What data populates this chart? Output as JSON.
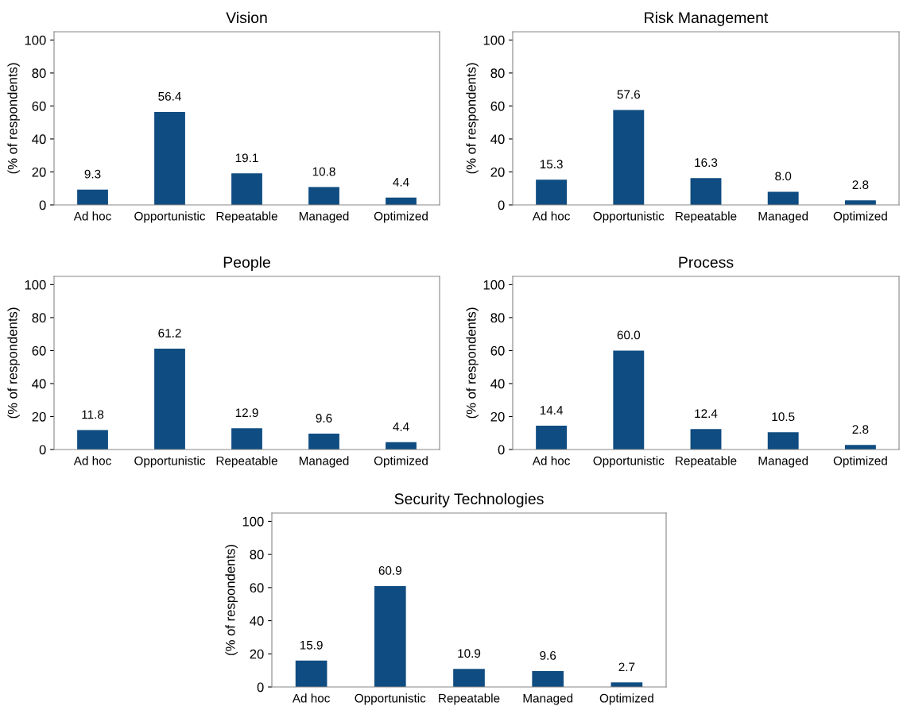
{
  "chart_data": [
    {
      "type": "bar",
      "title": "Vision",
      "ylabel": "(% of respondents)",
      "categories": [
        "Ad hoc",
        "Opportunistic",
        "Repeatable",
        "Managed",
        "Optimized"
      ],
      "values": [
        9.3,
        56.4,
        19.1,
        10.8,
        4.4
      ],
      "value_labels": [
        "9.3",
        "56.4",
        "19.1",
        "10.8",
        "4.4"
      ],
      "color": "#0f4c81",
      "ylim": [
        0,
        105
      ],
      "yticks": [
        0,
        20,
        40,
        60,
        80,
        100
      ]
    },
    {
      "type": "bar",
      "title": "Risk Management",
      "ylabel": "(% of respondents)",
      "categories": [
        "Ad hoc",
        "Opportunistic",
        "Repeatable",
        "Managed",
        "Optimized"
      ],
      "values": [
        15.3,
        57.6,
        16.3,
        8,
        2.8
      ],
      "value_labels": [
        "15.3",
        "57.6",
        "16.3",
        "8.0",
        "2.8"
      ],
      "color": "#0f4c81",
      "ylim": [
        0,
        105
      ],
      "yticks": [
        0,
        20,
        40,
        60,
        80,
        100
      ]
    },
    {
      "type": "bar",
      "title": "People",
      "ylabel": "(% of respondents)",
      "categories": [
        "Ad hoc",
        "Opportunistic",
        "Repeatable",
        "Managed",
        "Optimized"
      ],
      "values": [
        11.8,
        61.2,
        12.9,
        9.6,
        4.4
      ],
      "value_labels": [
        "11.8",
        "61.2",
        "12.9",
        "9.6",
        "4.4"
      ],
      "color": "#0f4c81",
      "ylim": [
        0,
        105
      ],
      "yticks": [
        0,
        20,
        40,
        60,
        80,
        100
      ]
    },
    {
      "type": "bar",
      "title": "Process",
      "ylabel": "(% of respondents)",
      "categories": [
        "Ad hoc",
        "Opportunistic",
        "Repeatable",
        "Managed",
        "Optimized"
      ],
      "values": [
        14.4,
        60,
        12.4,
        10.5,
        2.8
      ],
      "value_labels": [
        "14.4",
        "60.0",
        "12.4",
        "10.5",
        "2.8"
      ],
      "color": "#0f4c81",
      "ylim": [
        0,
        105
      ],
      "yticks": [
        0,
        20,
        40,
        60,
        80,
        100
      ]
    },
    {
      "type": "bar",
      "title": "Security Technologies",
      "ylabel": "(% of respondents)",
      "categories": [
        "Ad hoc",
        "Opportunistic",
        "Repeatable",
        "Managed",
        "Optimized"
      ],
      "values": [
        15.9,
        60.9,
        10.9,
        9.6,
        2.7
      ],
      "value_labels": [
        "15.9",
        "60.9",
        "10.9",
        "9.6",
        "2.7"
      ],
      "color": "#0f4c81",
      "ylim": [
        0,
        105
      ],
      "yticks": [
        0,
        20,
        40,
        60,
        80,
        100
      ]
    }
  ]
}
